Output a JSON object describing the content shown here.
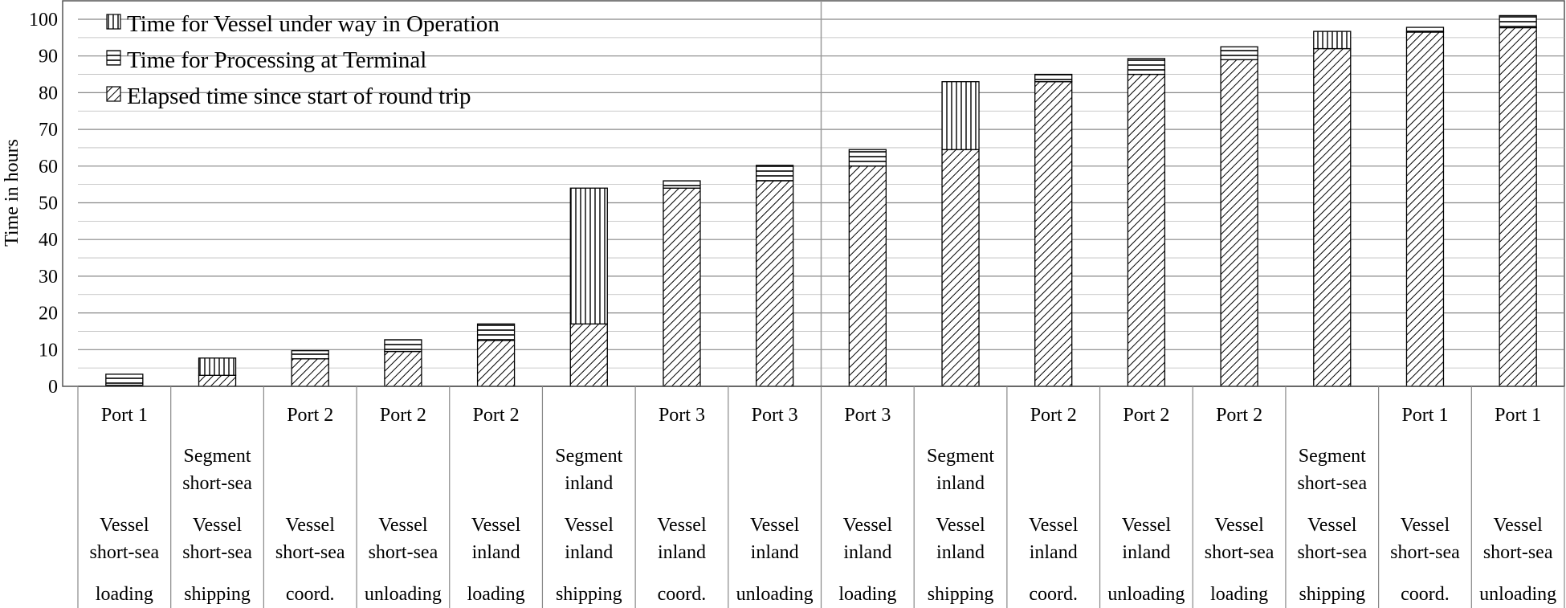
{
  "chart_data": {
    "type": "bar",
    "stacked": true,
    "ylabel": "Time in hours",
    "ylim": [
      0,
      100
    ],
    "ytick_step": 10,
    "minor_grid_step": 5,
    "grid": true,
    "legend_position": "top-left",
    "categories": [
      {
        "location": "Port 1",
        "segment": "",
        "vessel": [
          "Vessel",
          "short-sea"
        ],
        "activity": "loading"
      },
      {
        "location": "",
        "segment": [
          "Segment",
          "short-sea"
        ],
        "vessel": [
          "Vessel",
          "short-sea"
        ],
        "activity": "shipping"
      },
      {
        "location": "Port 2",
        "segment": "",
        "vessel": [
          "Vessel",
          "short-sea"
        ],
        "activity": "coord."
      },
      {
        "location": "Port 2",
        "segment": "",
        "vessel": [
          "Vessel",
          "short-sea"
        ],
        "activity": "unloading"
      },
      {
        "location": "Port 2",
        "segment": "",
        "vessel": [
          "Vessel",
          "inland"
        ],
        "activity": "loading"
      },
      {
        "location": "",
        "segment": [
          "Segment",
          "inland"
        ],
        "vessel": [
          "Vessel",
          "inland"
        ],
        "activity": "shipping"
      },
      {
        "location": "Port 3",
        "segment": "",
        "vessel": [
          "Vessel",
          "inland"
        ],
        "activity": "coord."
      },
      {
        "location": "Port 3",
        "segment": "",
        "vessel": [
          "Vessel",
          "inland"
        ],
        "activity": "unloading"
      },
      {
        "location": "Port 3",
        "segment": "",
        "vessel": [
          "Vessel",
          "inland"
        ],
        "activity": "loading"
      },
      {
        "location": "",
        "segment": [
          "Segment",
          "inland"
        ],
        "vessel": [
          "Vessel",
          "inland"
        ],
        "activity": "shipping"
      },
      {
        "location": "Port 2",
        "segment": "",
        "vessel": [
          "Vessel",
          "inland"
        ],
        "activity": "coord."
      },
      {
        "location": "Port 2",
        "segment": "",
        "vessel": [
          "Vessel",
          "inland"
        ],
        "activity": "unloading"
      },
      {
        "location": "Port 2",
        "segment": "",
        "vessel": [
          "Vessel",
          "short-sea"
        ],
        "activity": "loading"
      },
      {
        "location": "",
        "segment": [
          "Segment",
          "short-sea"
        ],
        "vessel": [
          "Vessel",
          "short-sea"
        ],
        "activity": "shipping"
      },
      {
        "location": "Port 1",
        "segment": "",
        "vessel": [
          "Vessel",
          "short-sea"
        ],
        "activity": "coord."
      },
      {
        "location": "Port 1",
        "segment": "",
        "vessel": [
          "Vessel",
          "short-sea"
        ],
        "activity": "unloading"
      }
    ],
    "series": [
      {
        "name": "Elapsed time since start of round trip",
        "pattern": "diagonal",
        "values": [
          0.3,
          3,
          7.5,
          9.5,
          12.5,
          17,
          54,
          56,
          60,
          64.5,
          83,
          85,
          89,
          92,
          96.5,
          97.7
        ]
      },
      {
        "name": "Time for Processing at Terminal",
        "pattern": "horizontal",
        "values": [
          3,
          0,
          2.2,
          3.2,
          4.5,
          0,
          2,
          4.2,
          4.5,
          0,
          2,
          4.3,
          3.5,
          0,
          1.3,
          3.3
        ]
      },
      {
        "name": "Time for Vessel under way in Operation",
        "pattern": "vertical",
        "values": [
          0,
          4.7,
          0,
          0,
          0,
          37,
          0,
          0,
          0,
          18.5,
          0,
          0,
          0,
          4.7,
          0,
          0
        ]
      }
    ],
    "legend_order": [
      2,
      1,
      0
    ]
  }
}
